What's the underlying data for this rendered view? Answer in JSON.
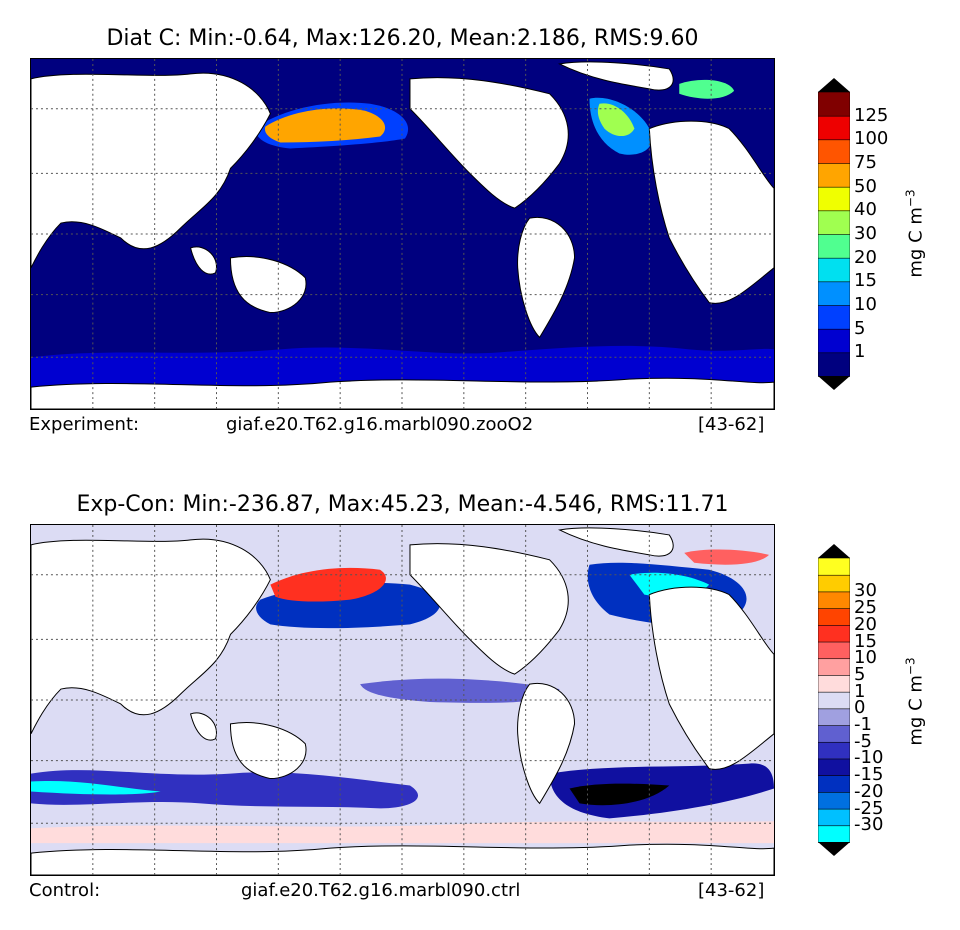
{
  "panel1": {
    "title": "Diat C: Min:-0.64, Max:126.20, Mean:2.186, RMS:9.60",
    "footer_left": "Experiment:",
    "footer_center": "giaf.e20.T62.g16.marbl090.zooO2",
    "footer_right": "[43-62]",
    "colorbar": {
      "label": "mg C m",
      "label_sup": "−3",
      "ticks": [
        "1",
        "5",
        "10",
        "15",
        "20",
        "30",
        "40",
        "50",
        "75",
        "100",
        "125"
      ],
      "colors": [
        "#00007f",
        "#0000d0",
        "#0040ff",
        "#0090ff",
        "#00e0f0",
        "#50ff90",
        "#a0ff50",
        "#f0ff00",
        "#ffa500",
        "#ff5500",
        "#ee0000",
        "#800000"
      ],
      "under_color": "#000000",
      "over_color": "#000000"
    }
  },
  "panel2": {
    "title": "Exp-Con: Min:-236.87, Max:45.23, Mean:-4.546, RMS:11.71",
    "footer_left": "Control:",
    "footer_center": "giaf.e20.T62.g16.marbl090.ctrl",
    "footer_right": "[43-62]",
    "colorbar": {
      "label": "mg C m",
      "label_sup": "−3",
      "ticks": [
        "-30",
        "-25",
        "-20",
        "-15",
        "-10",
        "-5",
        "-1",
        "0",
        "1",
        "5",
        "10",
        "15",
        "20",
        "25",
        "30"
      ],
      "colors": [
        "#00ffff",
        "#00c0ff",
        "#0070e0",
        "#0030c0",
        "#1010a0",
        "#3030c0",
        "#6060d0",
        "#a0a0e0",
        "#dcdcf4",
        "#ffdcdc",
        "#ffa0a0",
        "#ff6060",
        "#ff3020",
        "#ff4400",
        "#ff8800",
        "#ffcc00",
        "#ffff20"
      ],
      "under_color": "#000000",
      "over_color": "#000000"
    }
  },
  "map": {
    "ocean_base_panel1": "#00007f",
    "ocean_base_panel2": "#dcdcf4",
    "land_color": "#ffffff",
    "grid_style": "dotted"
  }
}
